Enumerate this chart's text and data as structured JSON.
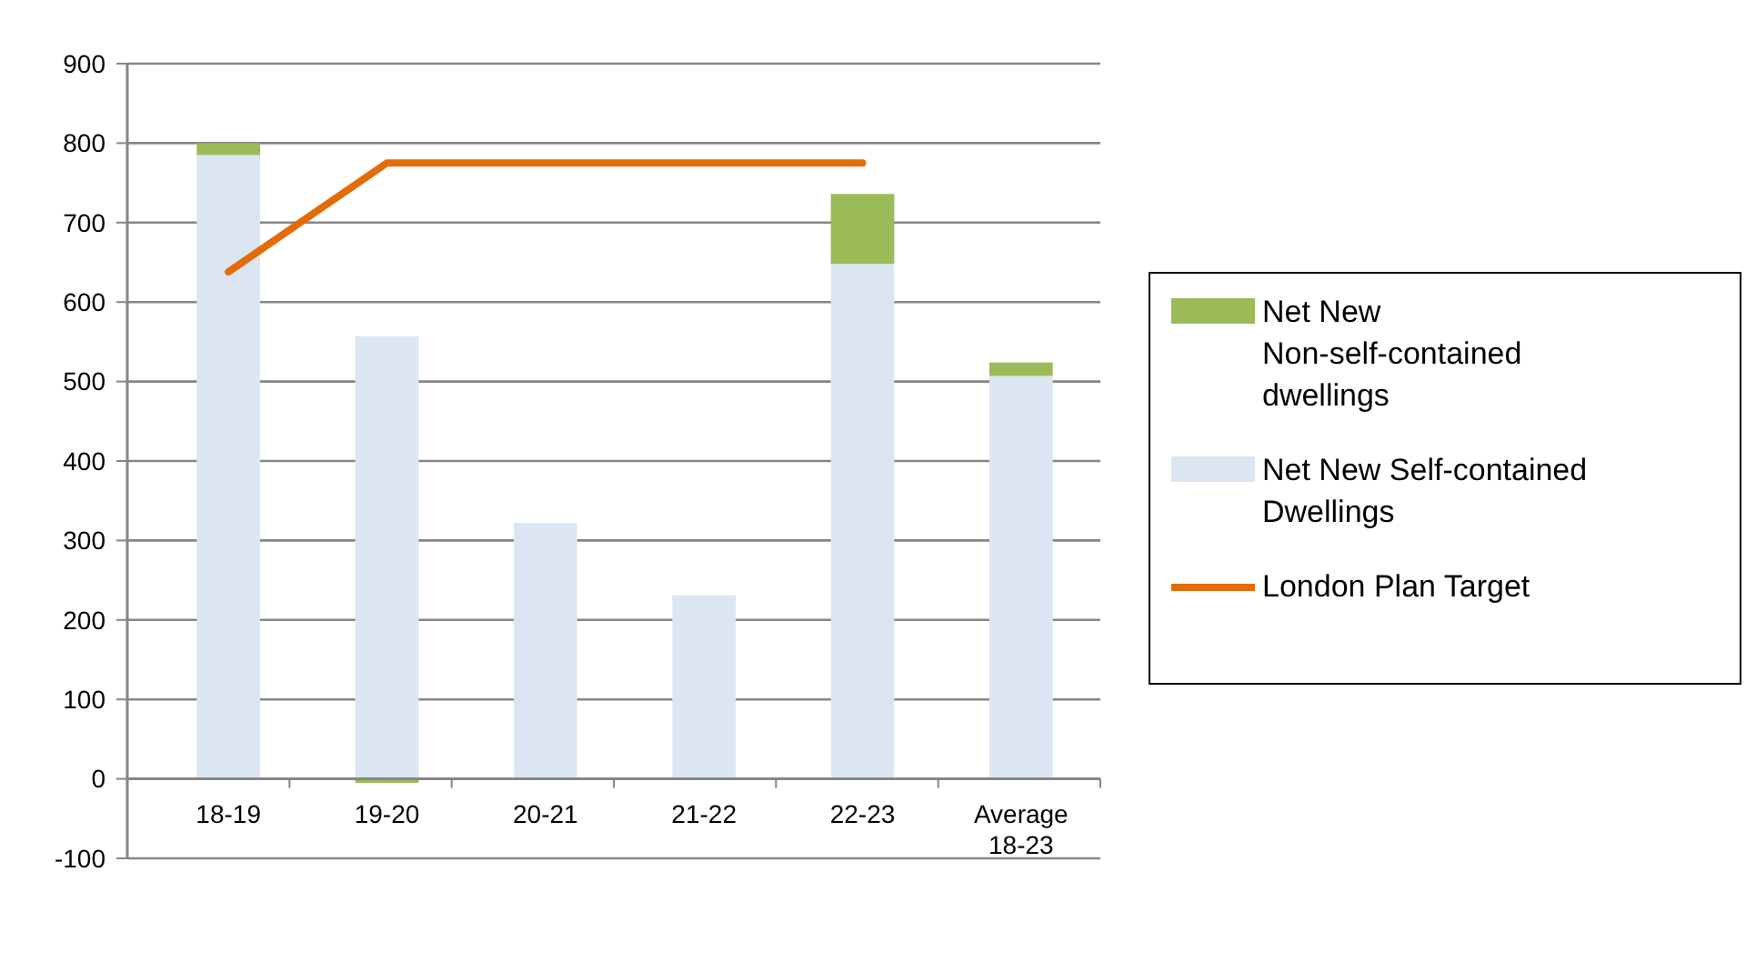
{
  "chart_data": {
    "type": "bar",
    "stacked": true,
    "categories": [
      "18-19",
      "19-20",
      "20-21",
      "21-22",
      "22-23",
      "Average 18-23"
    ],
    "series": [
      {
        "name": "Net New Self-contained Dwellings",
        "color": "#dce6f2",
        "values": [
          785,
          557,
          322,
          231,
          648,
          507
        ]
      },
      {
        "name": "Net New Non-self-contained dwellings",
        "color": "#9bbb59",
        "values": [
          15,
          -5,
          0,
          0,
          88,
          17
        ]
      },
      {
        "name": "London Plan Target",
        "type": "line",
        "color": "#e36c09",
        "values": [
          638,
          775,
          775,
          775,
          775,
          null
        ]
      }
    ],
    "ylim": [
      -100,
      900
    ],
    "yticks": [
      -100,
      0,
      100,
      200,
      300,
      400,
      500,
      600,
      700,
      800,
      900
    ],
    "grid": "y",
    "legend": "right",
    "marker": "none",
    "line_style": "solid"
  }
}
